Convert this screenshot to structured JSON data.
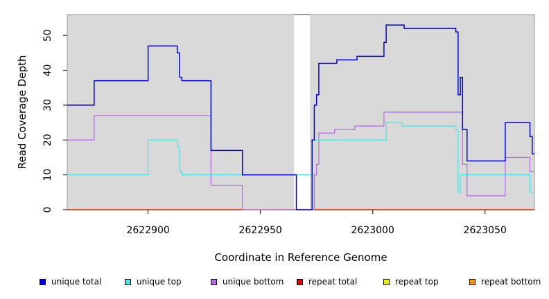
{
  "chart_data": {
    "type": "line",
    "step": true,
    "xlabel": "Coordinate in Reference Genome",
    "ylabel": "Read Coverage Depth",
    "xlim": [
      2622864,
      2623072
    ],
    "ylim": [
      0,
      56
    ],
    "xticks": [
      2622900,
      2622950,
      2623000,
      2623050
    ],
    "xtick_labels": [
      "2622900",
      "2622950",
      "2623000",
      "2623050"
    ],
    "yticks": [
      0,
      10,
      20,
      30,
      40,
      50
    ],
    "ytick_labels": [
      "0",
      "10",
      "20",
      "30",
      "40",
      "50"
    ],
    "background": "#d9d9d9",
    "gap": [
      2622965,
      2622972
    ],
    "legend_position": "bottom",
    "series": [
      {
        "name": "unique total",
        "color": "#0000dd",
        "x": [
          2622864,
          2622876,
          2622900,
          2622913,
          2622914,
          2622915,
          2622928,
          2622942,
          2622966,
          2622973,
          2622974,
          2622975,
          2622976,
          2622978,
          2622984,
          2622993,
          2623005,
          2623006,
          2623014,
          2623037,
          2623038,
          2623039,
          2623040,
          2623042,
          2623059,
          2623070,
          2623071,
          2623072
        ],
        "y": [
          30,
          37,
          47,
          45,
          38,
          37,
          17,
          10,
          0,
          20,
          30,
          33,
          42,
          42,
          43,
          44,
          48,
          53,
          52,
          51,
          33,
          38,
          23,
          14,
          25,
          21,
          16,
          16
        ]
      },
      {
        "name": "unique top",
        "color": "#44e4e4",
        "x": [
          2622864,
          2622900,
          2622913,
          2622914,
          2622915,
          2622966,
          2622973,
          2622976,
          2623005,
          2623006,
          2623013,
          2623037,
          2623038,
          2623039,
          2623040,
          2623070,
          2623071,
          2623072
        ],
        "y": [
          10,
          20,
          18,
          11,
          10,
          10,
          20,
          20,
          20,
          25,
          24,
          23,
          5,
          10,
          10,
          5,
          5,
          5
        ]
      },
      {
        "name": "unique bottom",
        "color": "#b266e8",
        "x": [
          2622864,
          2622876,
          2622928,
          2622942,
          2622966,
          2622974,
          2622975,
          2622976,
          2622983,
          2622992,
          2623005,
          2623040,
          2623042,
          2623059,
          2623070,
          2623071,
          2623072
        ],
        "y": [
          20,
          27,
          7,
          0,
          0,
          10,
          13,
          22,
          23,
          24,
          28,
          13,
          4,
          15,
          11,
          11,
          11
        ]
      },
      {
        "name": "repeat total",
        "color": "#dd0000",
        "x": [
          2622864,
          2623072
        ],
        "y": [
          0,
          0
        ]
      },
      {
        "name": "repeat top",
        "color": "#eeee00",
        "x": [
          2622864,
          2623072
        ],
        "y": [
          0,
          0
        ]
      },
      {
        "name": "repeat bottom",
        "color": "#ee9900",
        "x": [
          2622864,
          2623072
        ],
        "y": [
          0,
          0
        ]
      }
    ]
  }
}
